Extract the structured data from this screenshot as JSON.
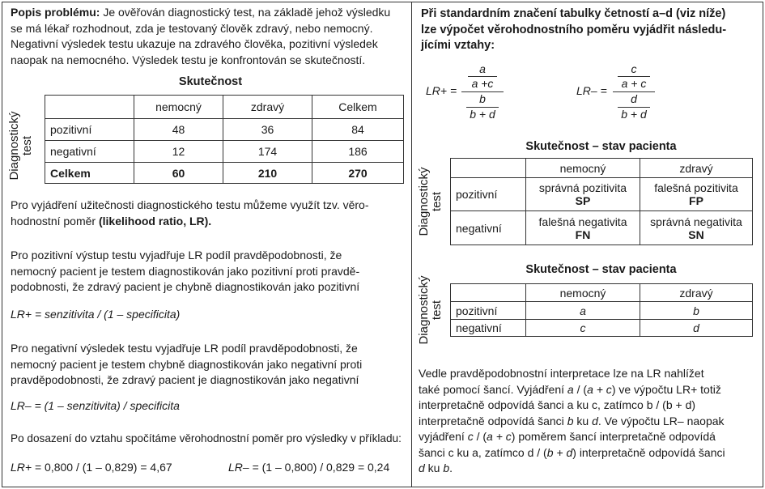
{
  "left": {
    "intro": [
      [
        {
          "t": "Popis problému:",
          "b": true
        },
        {
          "t": " Je ověřován diagnostický test, na základě jehož výsledku"
        }
      ],
      [
        {
          "t": "se má lékař rozhodnout, zda je testovaný člověk zdravý, nebo nemocný."
        }
      ],
      [
        {
          "t": "Negativní výsledek testu ukazuje na zdravého člověka, pozitivní výsledek"
        }
      ],
      [
        {
          "t": "naopak na nemocného. Výsledek testu je konfrontován se skutečností."
        }
      ]
    ],
    "table_title": "Skutečnost",
    "row_axis_label": [
      "Diagnostický",
      "test"
    ],
    "table": {
      "headers": [
        "",
        "nemocný",
        "zdravý",
        "Celkem"
      ],
      "rows": [
        [
          "pozitivní",
          "48",
          "36",
          "84"
        ],
        [
          "negativní",
          "12",
          "174",
          "186"
        ],
        [
          "Celkem",
          "60",
          "210",
          "270"
        ]
      ]
    },
    "p1": [
      [
        {
          "t": "Pro vyjádření užitečnosti diagnostického testu můžeme využít tzv. věro-"
        }
      ],
      [
        {
          "t": "hodnostní poměr "
        },
        {
          "t": "(likelihood ratio, LR).",
          "b": true
        }
      ]
    ],
    "p2": [
      [
        {
          "t": "Pro pozitivní výstup testu vyjadřuje LR podíl pravděpodobnosti, že"
        }
      ],
      [
        {
          "t": "nemocný pacient je testem diagnostikován jako pozitivní proti pravdě-"
        }
      ],
      [
        {
          "t": "podobnosti, že zdravý pacient je chybně diagnostikován jako pozitivní"
        }
      ]
    ],
    "formula_pos": [
      [
        {
          "t": "LR+ = senzitivita / (1 – specificita)",
          "i": true
        }
      ]
    ],
    "p3": [
      [
        {
          "t": "Pro negativní výsledek testu vyjadřuje LR podíl pravděpodobnosti, že"
        }
      ],
      [
        {
          "t": "nemocný pacient je testem chybně diagnostikován jako negativní proti"
        }
      ],
      [
        {
          "t": "pravděpodobnosti, že zdravý pacient je diagnostikován jako negativní"
        }
      ]
    ],
    "formula_neg": [
      [
        {
          "t": "LR– = (1 – senzitivita) / specificita",
          "i": true
        }
      ]
    ],
    "p4": [
      [
        {
          "t": "Po dosazení do vztahu spočítáme věrohodnostní poměr pro výsledky v příkladu:"
        }
      ]
    ],
    "result_pos": [
      [
        {
          "t": "LR+",
          "i": true
        },
        {
          "t": " = 0,800 / (1 – 0,829) = 4,67"
        }
      ]
    ],
    "result_neg": [
      [
        {
          "t": "LR–",
          "i": true
        },
        {
          "t": " = (1 – 0,800) / 0,829 = 0,24"
        }
      ]
    ]
  },
  "right": {
    "intro": [
      [
        {
          "t": "Při standardním značení tabulky četností a–d (viz níže)",
          "b": true
        }
      ],
      [
        {
          "t": "lze výpočet věrohodnostního poměru vyjádřit následu-",
          "b": true
        }
      ],
      [
        {
          "t": "jícími vztahy:",
          "b": true
        }
      ]
    ],
    "lr_pos": {
      "label": "LR+ =",
      "num_top": "a",
      "num_bottom": "a +c",
      "den_top": "b",
      "den_bottom": "b + d"
    },
    "lr_neg": {
      "label": "LR– =",
      "num_top": "c",
      "num_bottom": "a + c",
      "den_top": "d",
      "den_bottom": "b + d"
    },
    "table1_title": "Skutečnost – stav pacienta",
    "row_axis_label": [
      "Diagnostický",
      "test"
    ],
    "table1": {
      "headers": [
        "",
        "nemocný",
        "zdravý"
      ],
      "rows": [
        {
          "label": "pozitivní",
          "cells": [
            {
              "text": "správná pozitivita",
              "code": "SP"
            },
            {
              "text": "falešná pozitivita",
              "code": "FP"
            }
          ]
        },
        {
          "label": "negativní",
          "cells": [
            {
              "text": "falešná negativita",
              "code": "FN"
            },
            {
              "text": "správná negativita",
              "code": "SN"
            }
          ]
        }
      ]
    },
    "table2_title": "Skutečnost – stav pacienta",
    "table2": {
      "headers": [
        "",
        "nemocný",
        "zdravý"
      ],
      "rows": [
        [
          "pozitivní",
          "a",
          "b"
        ],
        [
          "negativní",
          "c",
          "d"
        ]
      ]
    },
    "closing": [
      [
        {
          "t": "Vedle pravděpodobnostní interpretace lze na LR nahlížet"
        }
      ],
      [
        {
          "t": "také pomocí šancí. Vyjádření "
        },
        {
          "t": "a",
          "i": true
        },
        {
          "t": " / ("
        },
        {
          "t": "a + c",
          "i": true
        },
        {
          "t": ") ve výpočtu LR+ totiž"
        }
      ],
      [
        {
          "t": "interpretačně odpovídá šanci a ku c, zatímco b / (b + d)"
        }
      ],
      [
        {
          "t": "interpretačně odpovídá šanci "
        },
        {
          "t": "b",
          "i": true
        },
        {
          "t": " ku "
        },
        {
          "t": "d",
          "i": true
        },
        {
          "t": ". Ve výpočtu LR– naopak"
        }
      ],
      [
        {
          "t": "vyjádření "
        },
        {
          "t": "c",
          "i": true
        },
        {
          "t": " / ("
        },
        {
          "t": "a + c",
          "i": true
        },
        {
          "t": ") poměrem šancí interpretačně odpovídá"
        }
      ],
      [
        {
          "t": "šanci c ku a, zatímco d / ("
        },
        {
          "t": "b + d",
          "i": true
        },
        {
          "t": ") interpretačně odpovídá šanci"
        }
      ],
      [
        {
          "t": "d",
          "i": true
        },
        {
          "t": " ku "
        },
        {
          "t": "b",
          "i": true
        },
        {
          "t": "."
        }
      ]
    ]
  }
}
